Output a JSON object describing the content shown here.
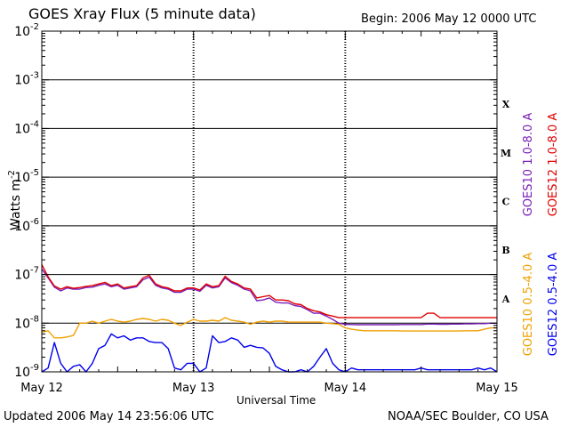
{
  "header": {
    "title": "GOES Xray Flux (5 minute data)",
    "begin": "Begin:  2006 May 12 0000 UTC"
  },
  "footer": {
    "updated": "Updated 2006 May 14 23:56:06 UTC",
    "credit": "NOAA/SEC Boulder, CO USA"
  },
  "colors": {
    "goes10_long": "#7a1fb8",
    "goes12_long": "#e00000",
    "goes10_short": "#f0a000",
    "goes12_short": "#0000ee"
  },
  "chart_data": {
    "type": "line",
    "title": "GOES Xray Flux (5 minute data)",
    "xlabel": "Universal Time",
    "ylabel": "Watts m",
    "ylabel_sup": "-2",
    "ylim_exponent": [
      -9,
      -2
    ],
    "log_scale": true,
    "xlim_hours": [
      0,
      72
    ],
    "x_ticks": [
      "May 12",
      "May 13",
      "May 14",
      "May 15"
    ],
    "y_ticks": [
      {
        "base": "10",
        "exp": "-9"
      },
      {
        "base": "10",
        "exp": "-8"
      },
      {
        "base": "10",
        "exp": "-7"
      },
      {
        "base": "10",
        "exp": "-6"
      },
      {
        "base": "10",
        "exp": "-5"
      },
      {
        "base": "10",
        "exp": "-4"
      },
      {
        "base": "10",
        "exp": "-3"
      },
      {
        "base": "10",
        "exp": "-2"
      }
    ],
    "flare_classes": [
      "A",
      "B",
      "C",
      "M",
      "X"
    ],
    "grid": true,
    "series": [
      {
        "name": "GOES12 1.0-8.0 A",
        "color": "#e00000",
        "x": [
          0,
          1,
          2,
          3,
          4,
          5,
          6,
          7,
          8,
          9,
          10,
          11,
          12,
          13,
          14,
          15,
          16,
          17,
          18,
          19,
          20,
          21,
          22,
          23,
          24,
          25,
          26,
          27,
          28,
          29,
          30,
          31,
          32,
          33,
          34,
          35,
          36,
          37,
          38,
          39,
          40,
          41,
          42,
          43,
          44,
          45,
          46,
          47,
          48,
          49,
          50,
          51,
          52,
          53,
          54,
          55,
          56,
          57,
          58,
          59,
          60,
          61,
          62,
          63,
          64,
          65,
          66,
          67,
          68,
          69,
          70,
          71,
          72
        ],
        "y": [
          1.6e-07,
          9e-08,
          5.8e-08,
          5e-08,
          5.6e-08,
          5.2e-08,
          5.4e-08,
          5.7e-08,
          5.9e-08,
          6.4e-08,
          6.9e-08,
          5.9e-08,
          6.4e-08,
          5.3e-08,
          5.6e-08,
          5.9e-08,
          8.5e-08,
          9.6e-08,
          6.4e-08,
          5.6e-08,
          5.3e-08,
          4.6e-08,
          4.6e-08,
          5.3e-08,
          5.3e-08,
          4.8e-08,
          6.4e-08,
          5.6e-08,
          5.9e-08,
          9.2e-08,
          7.2e-08,
          6.4e-08,
          5.3e-08,
          5e-08,
          3.3e-08,
          3.5e-08,
          3.7e-08,
          3e-08,
          3e-08,
          2.9e-08,
          2.5e-08,
          2.4e-08,
          2e-08,
          1.8e-08,
          1.7e-08,
          1.5e-08,
          1.4e-08,
          1.3e-08,
          1.3e-08,
          1.3e-08,
          1.3e-08,
          1.3e-08,
          1.3e-08,
          1.3e-08,
          1.3e-08,
          1.3e-08,
          1.3e-08,
          1.3e-08,
          1.3e-08,
          1.3e-08,
          1.3e-08,
          1.6e-08,
          1.6e-08,
          1.3e-08,
          1.3e-08,
          1.3e-08,
          1.3e-08,
          1.3e-08,
          1.3e-08,
          1.3e-08,
          1.3e-08,
          1.3e-08,
          1.3e-08
        ]
      },
      {
        "name": "GOES10 1.0-8.0 A",
        "color": "#7a1fb8",
        "x": [
          0,
          1,
          2,
          3,
          4,
          5,
          6,
          7,
          8,
          9,
          10,
          11,
          12,
          13,
          14,
          15,
          16,
          17,
          18,
          19,
          20,
          21,
          22,
          23,
          24,
          25,
          26,
          27,
          28,
          29,
          30,
          31,
          32,
          33,
          34,
          35,
          36,
          37,
          38,
          39,
          40,
          41,
          42,
          43,
          44,
          45,
          46,
          47,
          48,
          49,
          50,
          51,
          52,
          53,
          54,
          55,
          56,
          57,
          58,
          59,
          60,
          61,
          62,
          63,
          64,
          65,
          66,
          67,
          68,
          69,
          70,
          71,
          72
        ],
        "y": [
          1.3e-07,
          8.5e-08,
          5.5e-08,
          4.6e-08,
          5.3e-08,
          5e-08,
          5e-08,
          5.4e-08,
          5.5e-08,
          6e-08,
          6.4e-08,
          5.6e-08,
          6e-08,
          5e-08,
          5.3e-08,
          5.6e-08,
          7.8e-08,
          8.8e-08,
          6e-08,
          5.3e-08,
          5e-08,
          4.3e-08,
          4.3e-08,
          5e-08,
          5e-08,
          4.5e-08,
          6e-08,
          5.3e-08,
          5.6e-08,
          8.5e-08,
          6.8e-08,
          6e-08,
          5e-08,
          4.6e-08,
          2.9e-08,
          3e-08,
          3.3e-08,
          2.7e-08,
          2.6e-08,
          2.6e-08,
          2.3e-08,
          2.2e-08,
          1.9e-08,
          1.6e-08,
          1.6e-08,
          1.4e-08,
          1.2e-08,
          1e-08,
          9.5e-09,
          9.4e-09,
          9.3e-09,
          9.3e-09,
          9.3e-09,
          9.3e-09,
          9.3e-09,
          9.3e-09,
          9.3e-09,
          9.4e-09,
          9.4e-09,
          9.4e-09,
          9.4e-09,
          9.6e-09,
          9.6e-09,
          9.5e-09,
          9.5e-09,
          9.6e-09,
          9.6e-09,
          9.7e-09,
          9.7e-09,
          9.8e-09,
          9.8e-09,
          1e-08,
          1e-08
        ]
      },
      {
        "name": "GOES10 0.5-4.0 A",
        "color": "#f0a000",
        "x": [
          0,
          1,
          2,
          3,
          4,
          5,
          6,
          7,
          8,
          9,
          10,
          11,
          12,
          13,
          14,
          15,
          16,
          17,
          18,
          19,
          20,
          21,
          22,
          23,
          24,
          25,
          26,
          27,
          28,
          29,
          30,
          31,
          32,
          33,
          34,
          35,
          36,
          37,
          38,
          39,
          40,
          41,
          42,
          43,
          44,
          45,
          46,
          47,
          48,
          49,
          50,
          51,
          52,
          53,
          54,
          55,
          56,
          57,
          58,
          59,
          60,
          61,
          62,
          63,
          64,
          65,
          66,
          67,
          68,
          69,
          70,
          71,
          72
        ],
        "y": [
          6.5e-09,
          7e-09,
          5e-09,
          5e-09,
          5.2e-09,
          5.6e-09,
          1e-08,
          1e-08,
          1.1e-08,
          1e-08,
          1.1e-08,
          1.2e-08,
          1.1e-08,
          1.05e-08,
          1.1e-08,
          1.2e-08,
          1.25e-08,
          1.2e-08,
          1.1e-08,
          1.2e-08,
          1.15e-08,
          1e-08,
          9e-09,
          1.05e-08,
          1.2e-08,
          1.1e-08,
          1.1e-08,
          1.15e-08,
          1.1e-08,
          1.3e-08,
          1.15e-08,
          1.1e-08,
          1.05e-08,
          9.5e-09,
          1.05e-08,
          1.1e-08,
          1.05e-08,
          1.1e-08,
          1.1e-08,
          1.05e-08,
          1.05e-08,
          1.05e-08,
          1.05e-08,
          1.05e-08,
          1.05e-08,
          1e-08,
          9.8e-09,
          9.5e-09,
          8e-09,
          7.5e-09,
          7.2e-09,
          7e-09,
          7e-09,
          7e-09,
          7e-09,
          7e-09,
          7e-09,
          6.9e-09,
          6.9e-09,
          6.9e-09,
          6.9e-09,
          6.9e-09,
          6.9e-09,
          6.9e-09,
          6.9e-09,
          6.9e-09,
          6.9e-09,
          7e-09,
          7e-09,
          7e-09,
          7.5e-09,
          8e-09,
          8e-09
        ]
      },
      {
        "name": "GOES12 0.5-4.0 A",
        "color": "#0000ee",
        "x": [
          0,
          1,
          2,
          3,
          4,
          5,
          6,
          7,
          8,
          9,
          10,
          11,
          12,
          13,
          14,
          15,
          16,
          17,
          18,
          19,
          20,
          21,
          22,
          23,
          24,
          25,
          26,
          27,
          28,
          29,
          30,
          31,
          32,
          33,
          34,
          35,
          36,
          37,
          38,
          39,
          40,
          41,
          42,
          43,
          44,
          45,
          46,
          47,
          48,
          49,
          50,
          51,
          52,
          53,
          54,
          55,
          56,
          57,
          58,
          59,
          60,
          61,
          62,
          63,
          64,
          65,
          66,
          67,
          68,
          69,
          70,
          71,
          72
        ],
        "y": [
          1e-09,
          1.2e-09,
          4e-09,
          1.5e-09,
          1e-09,
          1.3e-09,
          1.4e-09,
          1e-09,
          1.5e-09,
          3e-09,
          3.5e-09,
          6e-09,
          5e-09,
          5.5e-09,
          4.5e-09,
          5e-09,
          5e-09,
          4.2e-09,
          4e-09,
          4e-09,
          3e-09,
          1.2e-09,
          1.1e-09,
          1.5e-09,
          1.5e-09,
          1e-09,
          1.2e-09,
          5.5e-09,
          4e-09,
          4.2e-09,
          5e-09,
          4.5e-09,
          3.2e-09,
          3.5e-09,
          3.2e-09,
          3.1e-09,
          2.4e-09,
          1.3e-09,
          1.1e-09,
          1e-09,
          1e-09,
          1.1e-09,
          1e-09,
          1.3e-09,
          2e-09,
          3e-09,
          1.5e-09,
          1.1e-09,
          1e-09,
          1.2e-09,
          1.1e-09,
          1.1e-09,
          1.1e-09,
          1.1e-09,
          1.1e-09,
          1.1e-09,
          1.1e-09,
          1.1e-09,
          1.1e-09,
          1.1e-09,
          1.2e-09,
          1.1e-09,
          1.1e-09,
          1.1e-09,
          1.1e-09,
          1.1e-09,
          1.1e-09,
          1.1e-09,
          1.1e-09,
          1.2e-09,
          1.1e-09,
          1.2e-09,
          1e-09
        ]
      }
    ]
  }
}
